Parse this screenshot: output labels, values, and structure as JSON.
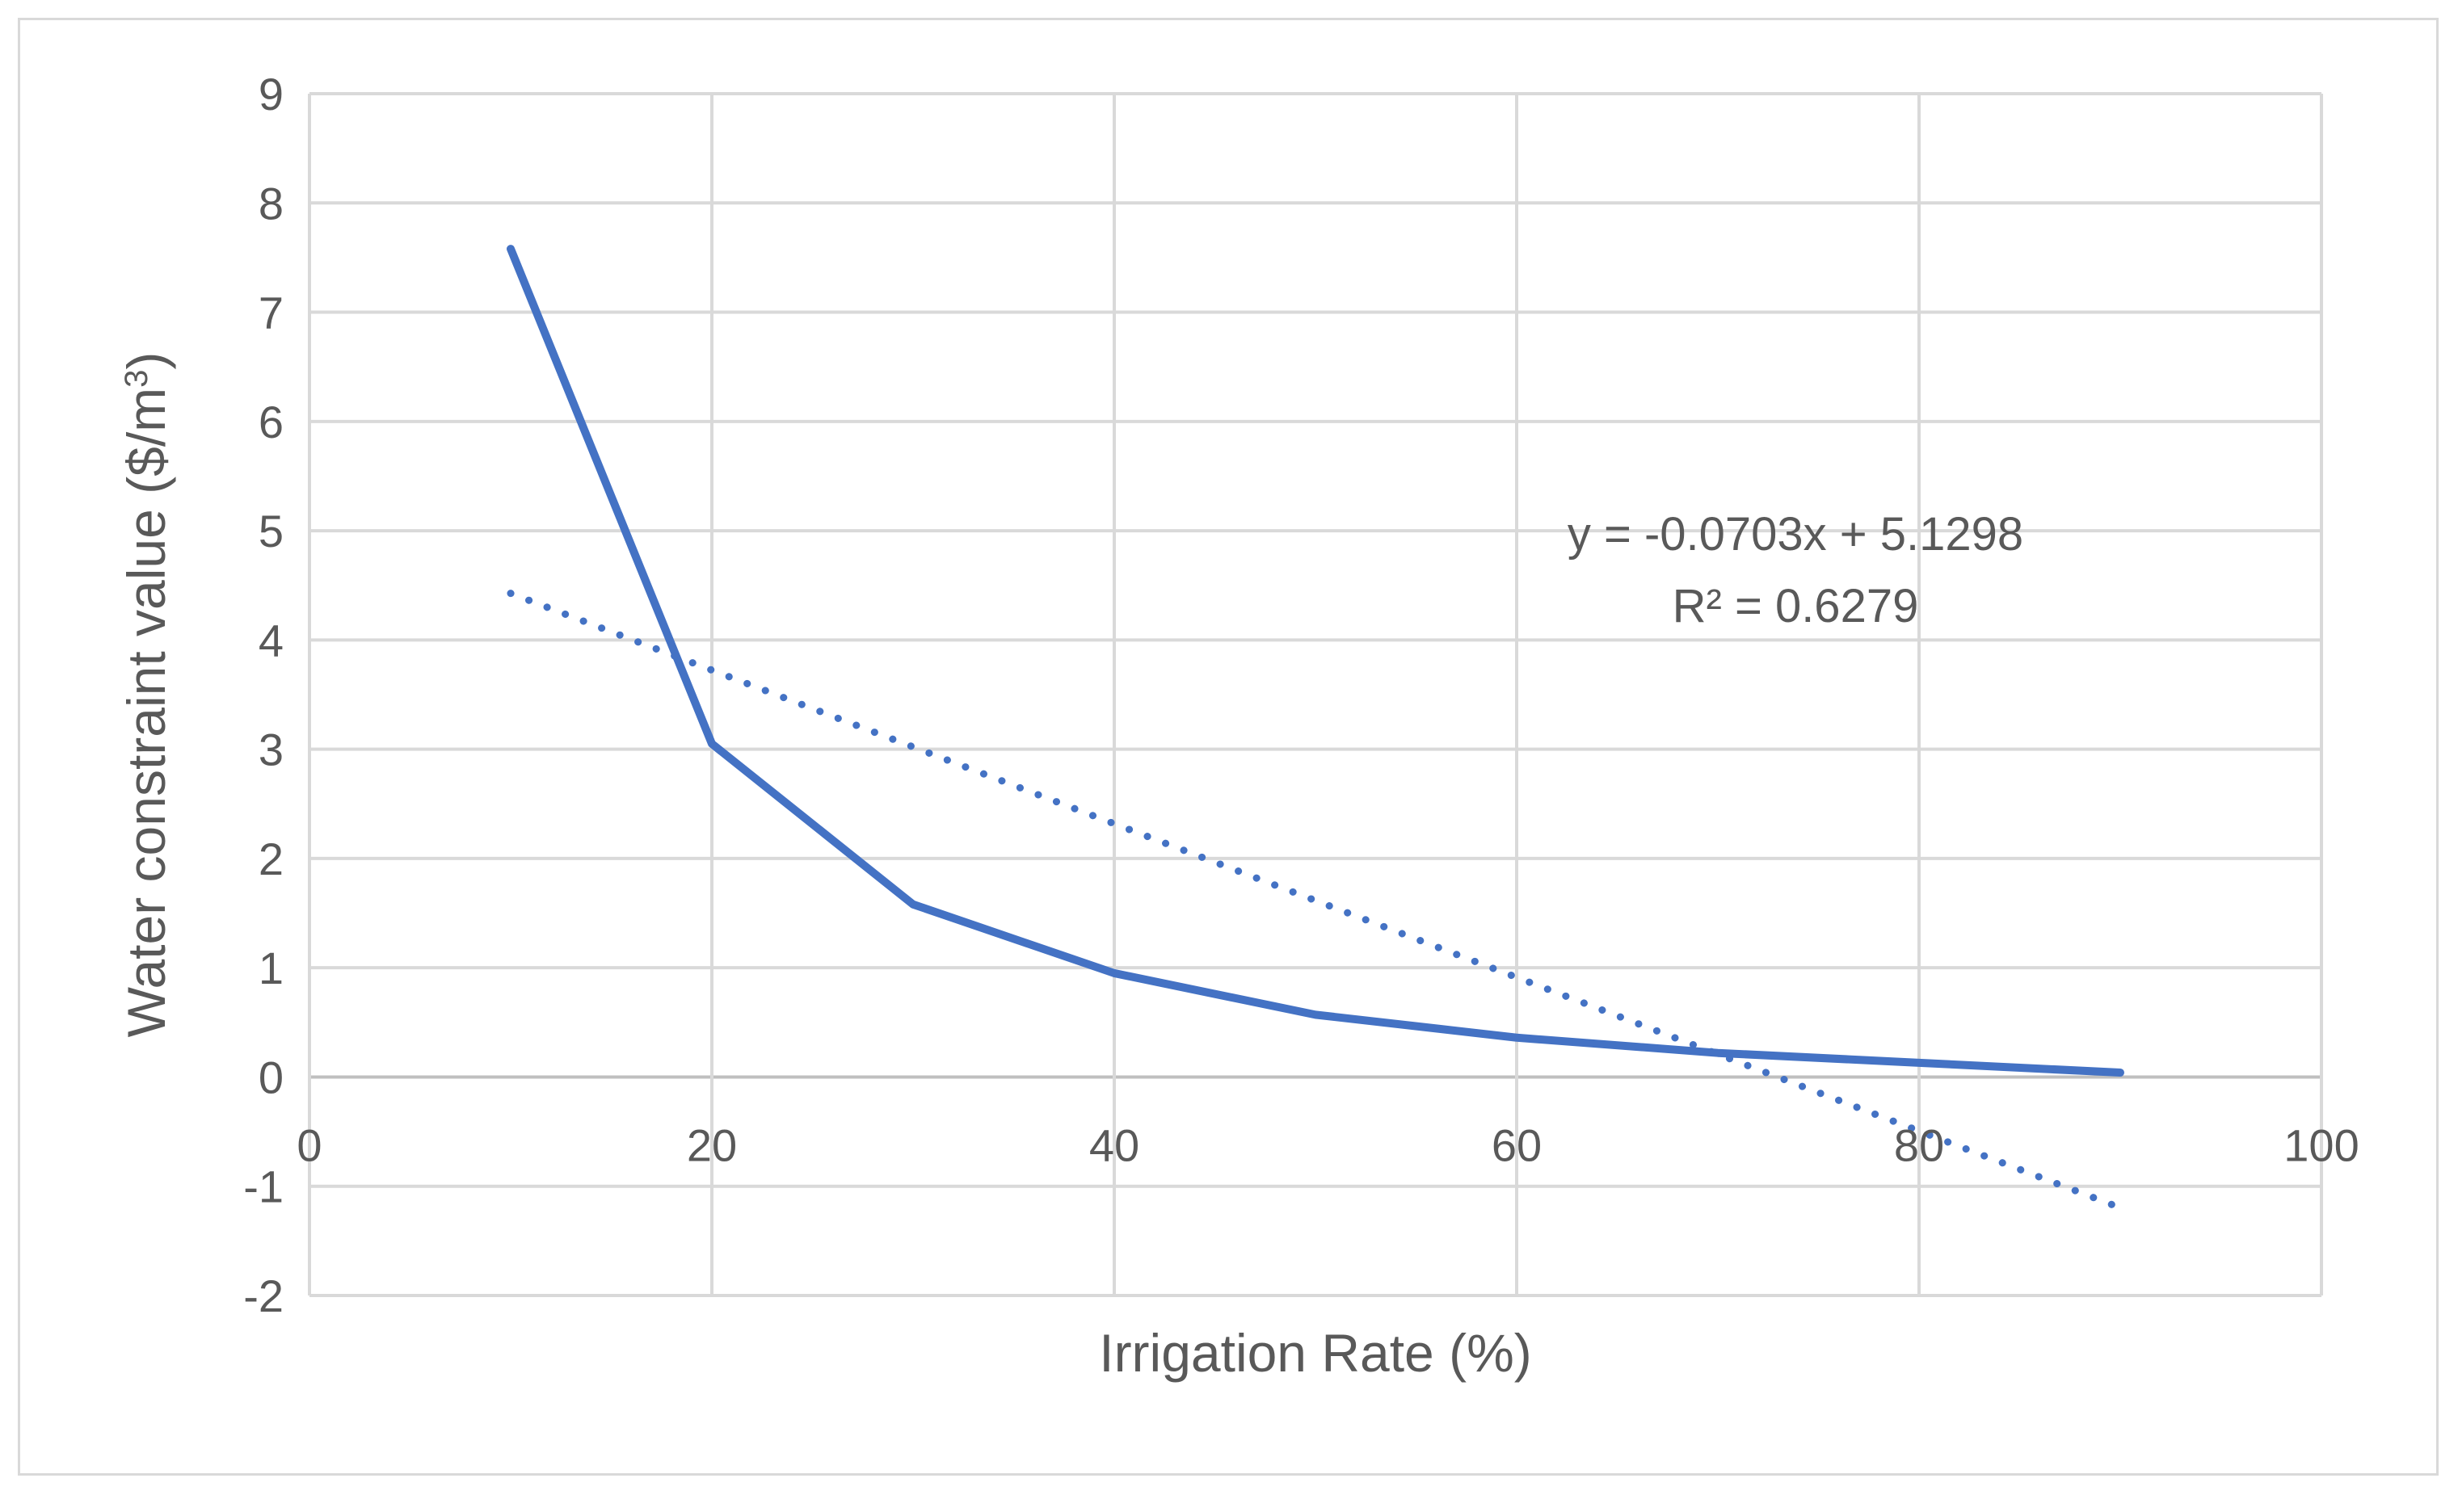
{
  "chart_data": {
    "type": "line",
    "title": "",
    "xlabel": "Irrigation Rate (%)",
    "ylabel_main": "Water constraint value ($/m",
    "ylabel_sup": "3",
    "ylabel_close": ")",
    "xlim": [
      0,
      100
    ],
    "ylim": [
      -2,
      9
    ],
    "x_ticks": [
      0,
      20,
      40,
      60,
      80,
      100
    ],
    "y_ticks": [
      -2,
      -1,
      0,
      1,
      2,
      3,
      4,
      5,
      6,
      7,
      8,
      9
    ],
    "grid": true,
    "series": [
      {
        "name": "Water constraint value",
        "style": "solid",
        "color": "#4472c4",
        "x": [
          10,
          20,
          30,
          40,
          50,
          60,
          70,
          80,
          90
        ],
        "y": [
          7.58,
          3.05,
          1.58,
          0.95,
          0.57,
          0.36,
          0.22,
          0.13,
          0.04
        ]
      },
      {
        "name": "Linear trendline",
        "style": "dotted",
        "color": "#4472c4",
        "slope": -0.0703,
        "intercept": 5.1298,
        "x_range": [
          10,
          90
        ]
      }
    ],
    "annotation": {
      "equation": "y = -0.0703x + 5.1298",
      "r_squared": "R² = 0.6279"
    }
  }
}
